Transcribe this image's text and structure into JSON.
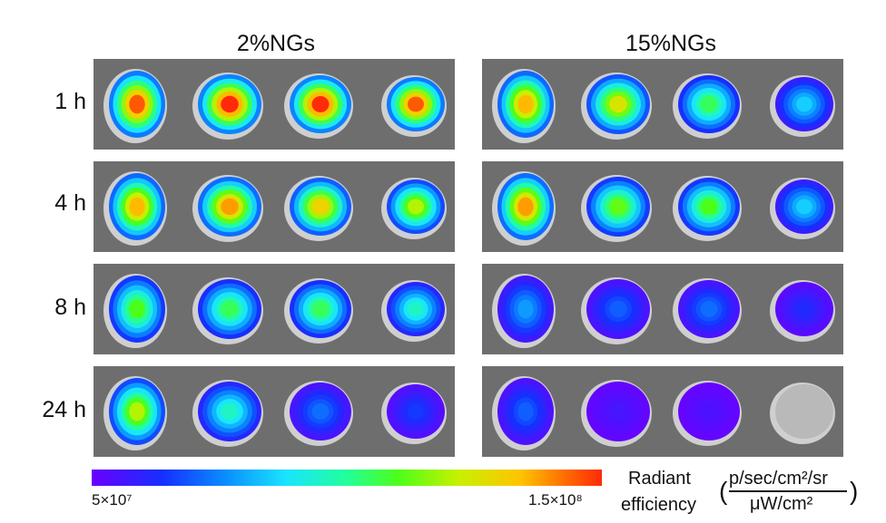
{
  "columns": [
    "2%NGs",
    "15%NGs"
  ],
  "rows": [
    "1 h",
    "4 h",
    "8 h",
    "24 h"
  ],
  "colorbar": {
    "min_label": "5×10⁷",
    "max_label": "1.5×10⁸",
    "title_line1": "Radiant",
    "title_line2": "efficiency",
    "unit_numerator": "p/sec/cm²/sr",
    "unit_denominator": "μW/cm²"
  },
  "intensity_levels_0_to_1": [
    [
      [
        0.95,
        1.0,
        1.0,
        0.95
      ],
      [
        0.85,
        0.75,
        0.55,
        0.35
      ]
    ],
    [
      [
        0.85,
        0.88,
        0.8,
        0.7
      ],
      [
        0.88,
        0.62,
        0.6,
        0.35
      ]
    ],
    [
      [
        0.6,
        0.55,
        0.55,
        0.45
      ],
      [
        0.28,
        0.2,
        0.22,
        0.12
      ]
    ],
    [
      [
        0.7,
        0.45,
        0.22,
        0.15
      ],
      [
        0.2,
        0.06,
        0.05,
        0.0
      ]
    ]
  ]
}
